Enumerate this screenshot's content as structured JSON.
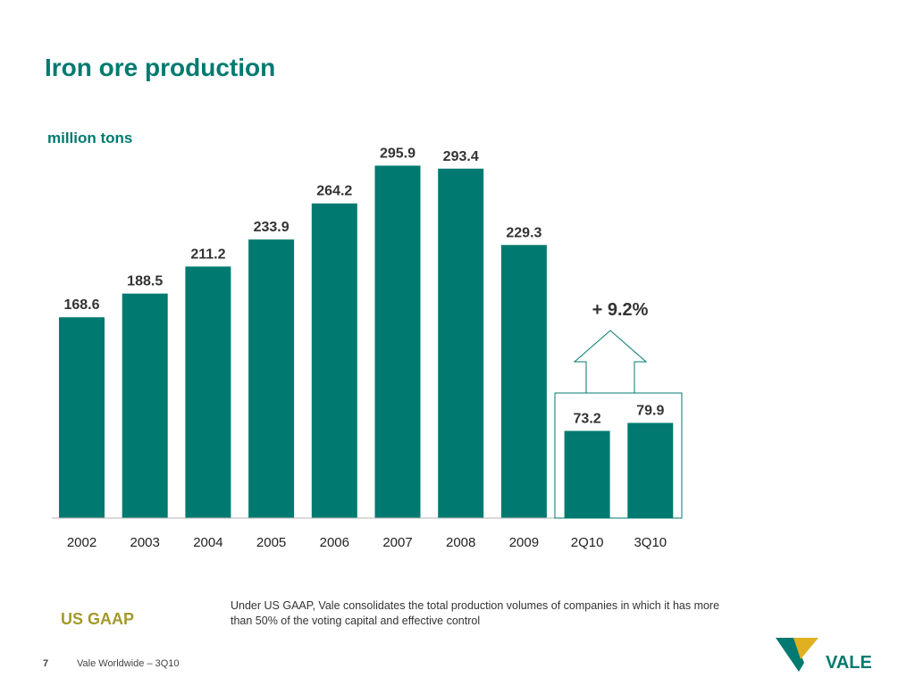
{
  "page": {
    "title": "Iron ore production",
    "unit_label": "million tons",
    "gaap_label": "US GAAP",
    "note": "Under US GAAP, Vale consolidates the total production volumes of companies in which it has more than 50% of the voting capital and effective control",
    "page_number": "7",
    "footer_text": "Vale Worldwide – 3Q10",
    "logo_text": "VALE"
  },
  "colors": {
    "bar": "#007a70",
    "title": "#007a70",
    "gaap": "#a39a2a",
    "logo_green": "#007a70",
    "logo_gold": "#e0b020"
  },
  "chart_data": {
    "type": "bar",
    "categories": [
      "2002",
      "2003",
      "2004",
      "2005",
      "2006",
      "2007",
      "2008",
      "2009",
      "2Q10",
      "3Q10"
    ],
    "values": [
      168.6,
      188.5,
      211.2,
      233.9,
      264.2,
      295.9,
      293.4,
      229.3,
      73.2,
      79.9
    ],
    "value_labels": [
      "168.6",
      "188.5",
      "211.2",
      "233.9",
      "264.2",
      "295.9",
      "293.4",
      "229.3",
      "73.2",
      "79.9"
    ],
    "ylim": [
      0,
      300
    ],
    "grid": false,
    "annotation": "+ 9.2%"
  }
}
